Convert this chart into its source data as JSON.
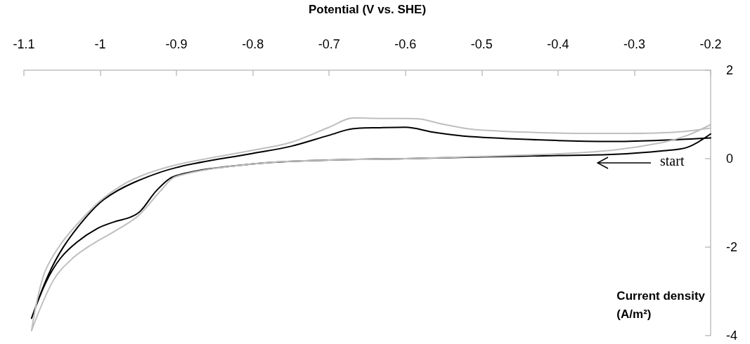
{
  "chart_data": {
    "type": "line",
    "xlabel": "Potential (V vs. SHE)",
    "ylabel": "Current density (A/m²)",
    "xlim": [
      -1.1,
      -0.2
    ],
    "xticks": [
      -1.1,
      -1,
      -0.9,
      -0.8,
      -0.7,
      -0.6,
      -0.5,
      -0.4,
      -0.3,
      -0.2
    ],
    "ylim": [
      -4,
      2
    ],
    "yticks": [
      -4,
      -2,
      0,
      2
    ],
    "grid": false,
    "marker": "none",
    "line_style": "solid",
    "annotations": [
      "start"
    ],
    "series": [
      {
        "color": "#000000",
        "x": [
          -0.2,
          -0.23,
          -0.262,
          -0.325,
          -0.4,
          -0.5,
          -0.6,
          -0.7,
          -0.8,
          -0.9,
          -0.925,
          -0.947,
          -0.96,
          -0.982,
          -1.004,
          -1.03,
          -1.052,
          -1.071,
          -1.09,
          -1.068,
          -1.048,
          -1.02,
          -0.995,
          -0.956,
          -0.9,
          -0.8,
          -0.75,
          -0.7,
          -0.668,
          -0.633,
          -0.6,
          -0.564,
          -0.516,
          -0.4,
          -0.325,
          -0.246,
          -0.2
        ],
        "values": [
          0.56,
          0.26,
          0.18,
          0.1,
          0.07,
          0.04,
          0,
          -0.03,
          -0.12,
          -0.38,
          -0.7,
          -1.18,
          -1.32,
          -1.43,
          -1.58,
          -1.88,
          -2.25,
          -2.79,
          -3.61,
          -2.63,
          -1.99,
          -1.35,
          -0.92,
          -0.54,
          -0.2,
          0.12,
          0.28,
          0.53,
          0.68,
          0.7,
          0.71,
          0.6,
          0.5,
          0.41,
          0.39,
          0.43,
          0.47
        ]
      },
      {
        "color": "#bfbfbf",
        "x": [
          -0.2,
          -0.23,
          -0.262,
          -0.325,
          -0.389,
          -0.5,
          -0.6,
          -0.7,
          -0.8,
          -0.9,
          -0.92,
          -0.95,
          -0.978,
          -1.011,
          -1.036,
          -1.061,
          -1.09,
          -1.074,
          -1.052,
          -1.02,
          -0.995,
          -0.956,
          -0.9,
          -0.8,
          -0.75,
          -0.7,
          -0.668,
          -0.633,
          -0.6,
          -0.583,
          -0.548,
          -0.51,
          -0.4,
          -0.325,
          -0.246,
          -0.2
        ],
        "values": [
          0.77,
          0.53,
          0.37,
          0.2,
          0.12,
          0.05,
          0,
          -0.03,
          -0.12,
          -0.4,
          -0.71,
          -1.29,
          -1.61,
          -1.94,
          -2.25,
          -2.74,
          -3.89,
          -2.63,
          -1.94,
          -1.29,
          -0.88,
          -0.46,
          -0.14,
          0.19,
          0.37,
          0.71,
          0.92,
          0.91,
          0.91,
          0.9,
          0.77,
          0.66,
          0.58,
          0.57,
          0.6,
          0.69
        ]
      }
    ]
  }
}
